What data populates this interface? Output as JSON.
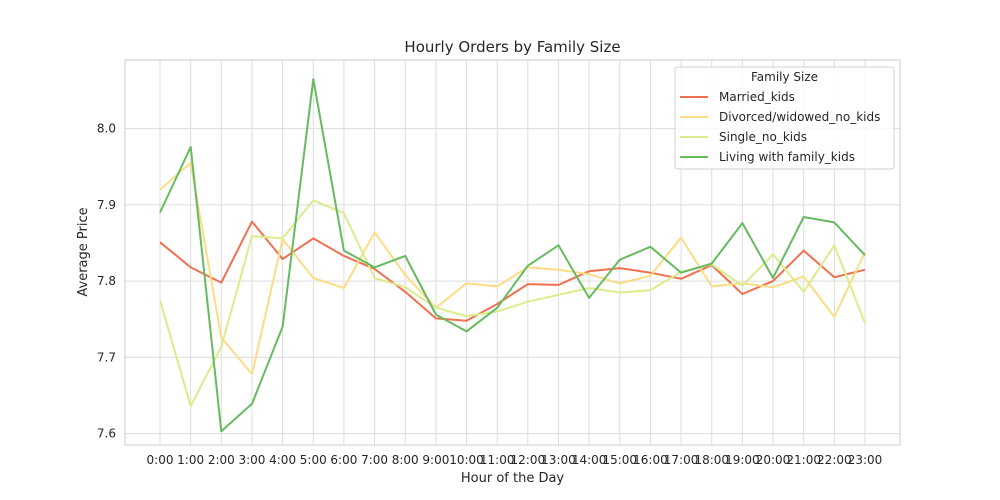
{
  "chart_data": {
    "type": "line",
    "title": "Hourly Orders by Family Size",
    "xlabel": "Hour of the Day",
    "ylabel": "Average Price",
    "categories": [
      "0:00",
      "1:00",
      "2:00",
      "3:00",
      "4:00",
      "5:00",
      "6:00",
      "7:00",
      "8:00",
      "9:00",
      "10:00",
      "11:00",
      "12:00",
      "13:00",
      "14:00",
      "15:00",
      "16:00",
      "17:00",
      "18:00",
      "19:00",
      "20:00",
      "21:00",
      "22:00",
      "23:00"
    ],
    "ylim": [
      7.585,
      8.09
    ],
    "yticks": [
      7.6,
      7.7,
      7.8,
      7.9,
      8.0
    ],
    "ytick_labels": [
      "7.6",
      "7.7",
      "7.8",
      "7.9",
      "8.0"
    ],
    "grid": true,
    "legend": {
      "title": "Family Size",
      "position": "top-right"
    },
    "series": [
      {
        "name": "Married_kids",
        "color": "#f07050",
        "values": [
          7.851,
          7.818,
          7.798,
          7.878,
          7.829,
          7.856,
          7.833,
          7.816,
          7.786,
          7.751,
          7.748,
          7.77,
          7.796,
          7.795,
          7.813,
          7.817,
          7.811,
          7.803,
          7.821,
          7.783,
          7.8,
          7.84,
          7.805,
          7.815
        ]
      },
      {
        "name": "Divorced/widowed_no_kids",
        "color": "#fddc85",
        "values": [
          7.92,
          7.955,
          7.726,
          7.678,
          7.855,
          7.804,
          7.791,
          7.864,
          7.808,
          7.765,
          7.797,
          7.793,
          7.818,
          7.815,
          7.809,
          7.797,
          7.807,
          7.857,
          7.793,
          7.797,
          7.792,
          7.806,
          7.753,
          7.838
        ]
      },
      {
        "name": "Single_no_kids",
        "color": "#dcec8c",
        "values": [
          7.775,
          7.636,
          7.714,
          7.859,
          7.856,
          7.906,
          7.889,
          7.804,
          7.792,
          7.765,
          7.754,
          7.76,
          7.773,
          7.782,
          7.791,
          7.785,
          7.788,
          7.812,
          7.822,
          7.794,
          7.835,
          7.786,
          7.847,
          7.745
        ]
      },
      {
        "name": "Living with family_kids",
        "color": "#66bb60",
        "values": [
          7.89,
          7.976,
          7.603,
          7.639,
          7.74,
          8.065,
          7.84,
          7.818,
          7.833,
          7.756,
          7.734,
          7.765,
          7.82,
          7.847,
          7.778,
          7.828,
          7.845,
          7.811,
          7.823,
          7.876,
          7.804,
          7.884,
          7.877,
          7.834
        ]
      }
    ]
  }
}
